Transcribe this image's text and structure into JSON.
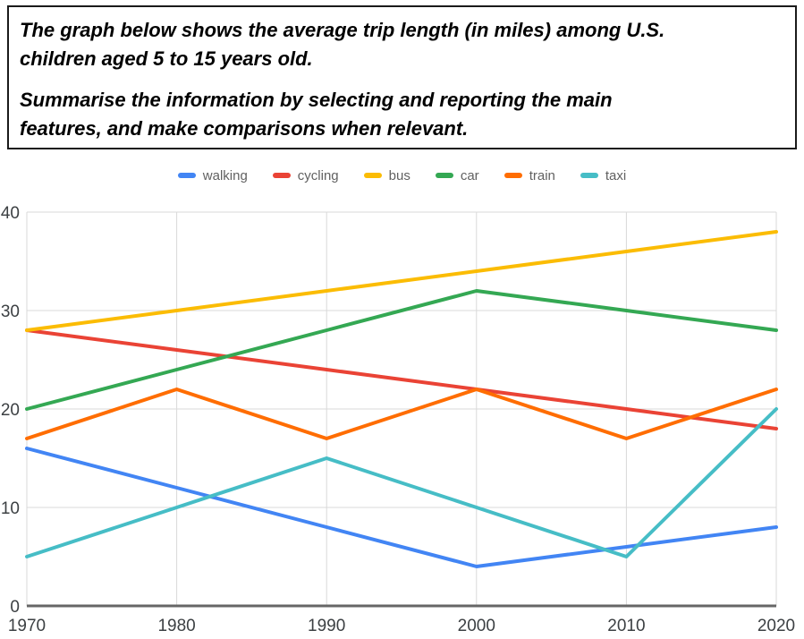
{
  "header": {
    "p1_line1": "The graph below shows the average trip length (in miles) among U.S.",
    "p1_line2": "children aged 5 to 15 years old.",
    "p2_line1": "Summarise the information by selecting and reporting the main",
    "p2_line2": "features, and make comparisons when relevant."
  },
  "chart_data": {
    "type": "line",
    "title": "",
    "xlabel": "",
    "ylabel": "",
    "categories": [
      "1970",
      "1980",
      "1990",
      "2000",
      "2010",
      "2020"
    ],
    "series": [
      {
        "name": "walking",
        "color": "#4285F4",
        "values": [
          16,
          12,
          8,
          4,
          6,
          8
        ]
      },
      {
        "name": "cycling",
        "color": "#EA4335",
        "values": [
          28,
          26,
          24,
          22,
          20,
          18
        ]
      },
      {
        "name": "bus",
        "color": "#FBBC04",
        "values": [
          28,
          30,
          32,
          34,
          36,
          38
        ]
      },
      {
        "name": "car",
        "color": "#34A853",
        "values": [
          20,
          24,
          28,
          32,
          30,
          28
        ]
      },
      {
        "name": "train",
        "color": "#FF6D01",
        "values": [
          17,
          22,
          17,
          22,
          17,
          22
        ]
      },
      {
        "name": "taxi",
        "color": "#46BDC6",
        "values": [
          5,
          10,
          15,
          10,
          5,
          20
        ]
      }
    ],
    "ylim": [
      0,
      40
    ],
    "yticks": [
      0,
      10,
      20,
      30,
      40
    ],
    "grid": true,
    "legend_position": "top"
  },
  "colors": {
    "background": "#ffffff",
    "box_border": "#1a1a1a",
    "grid": "#d9d9d9",
    "baseline": "#666666",
    "axis_label": "#3c4043",
    "legend_label": "#616161"
  }
}
